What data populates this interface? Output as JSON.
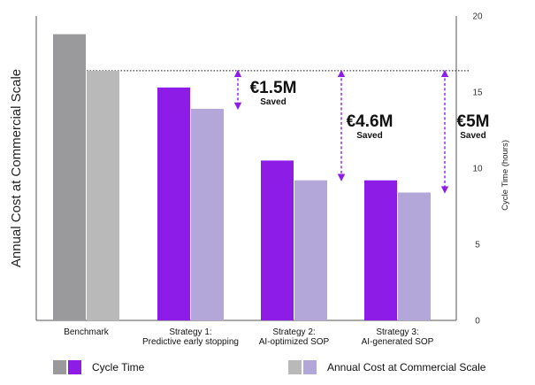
{
  "chart_data": {
    "type": "bar",
    "categories": [
      [
        "Benchmark"
      ],
      [
        "Strategy 1:",
        "Predictive early stopping"
      ],
      [
        "Strategy 2:",
        "AI-optimized SOP"
      ],
      [
        "Strategy 3:",
        "AI-generated SOP"
      ]
    ],
    "series": [
      {
        "name": "Cycle Time",
        "axis": "right",
        "values": [
          18.8,
          15.3,
          10.5,
          9.2
        ]
      },
      {
        "name": "Annual Cost at Commercial Scale",
        "axis": "left",
        "values": [
          16.4,
          13.9,
          9.2,
          8.4
        ]
      }
    ],
    "left_axis": {
      "label": "Annual Cost at Commercial Scale",
      "ticks_shown": false
    },
    "right_axis": {
      "label": "Cycle Time (hours)",
      "ylim": [
        0,
        20
      ],
      "ticks": [
        "0",
        "5",
        "10",
        "15",
        "20"
      ]
    },
    "reference_line": {
      "value": 16.4,
      "style": "dotted"
    },
    "savings_annotations": [
      {
        "category_index": 1,
        "amount": "€1.5M",
        "note": "Saved"
      },
      {
        "category_index": 2,
        "amount": "€4.6M",
        "note": "Saved"
      },
      {
        "category_index": 3,
        "amount": "€5M",
        "note": "Saved"
      }
    ],
    "legend": [
      {
        "label": "Cycle Time",
        "colors": [
          "#9a999b",
          "#8d1de6"
        ]
      },
      {
        "label": "Annual Cost at Commercial Scale",
        "colors": [
          "#b9b9b9",
          "#b3a7d9"
        ]
      }
    ],
    "colors": {
      "benchmark_cycle": "#9a999b",
      "benchmark_cost": "#b9b9b9",
      "strategy_cycle": "#8d1de6",
      "strategy_cost": "#b3a7d9",
      "annotation_arrow": "#8d1de6"
    }
  }
}
